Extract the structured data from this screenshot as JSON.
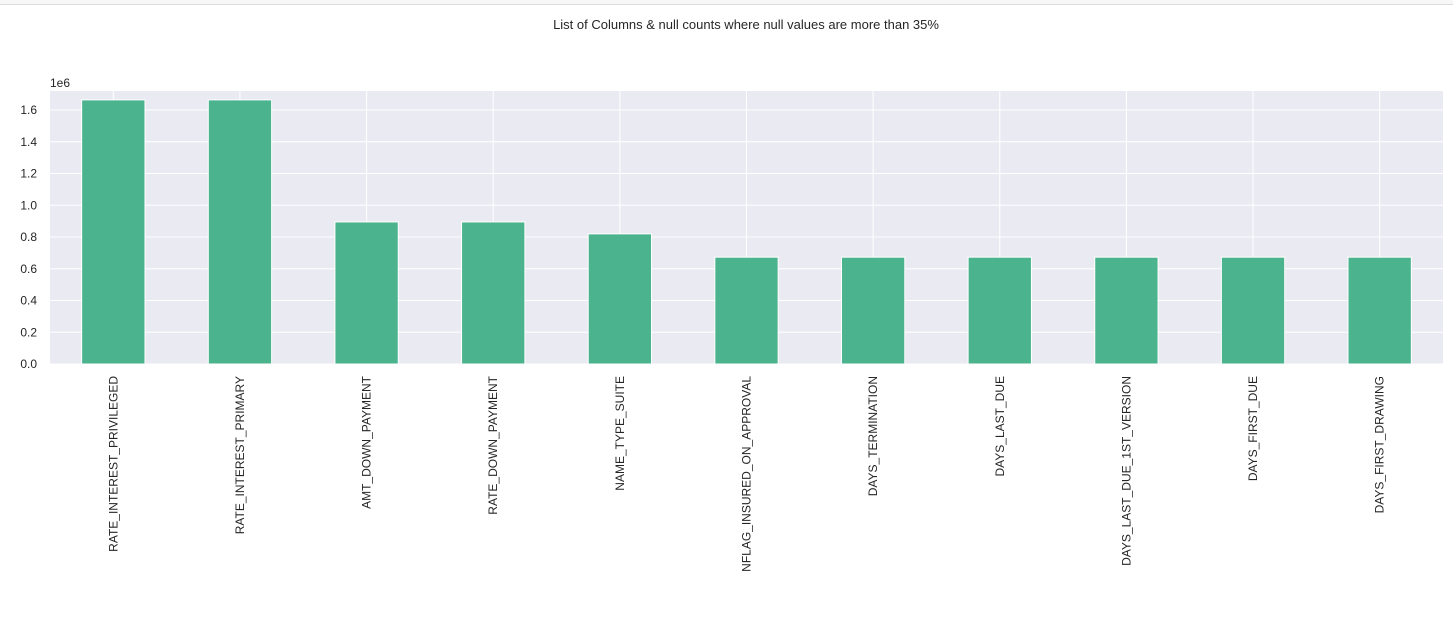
{
  "chart_data": {
    "type": "bar",
    "title": "List of Columns & null counts where null values are more than 35%",
    "offset_label": "1e6",
    "xlabel": "",
    "ylabel": "",
    "ylim": [
      0,
      1.72
    ],
    "yticks": [
      "0.0",
      "0.2",
      "0.4",
      "0.6",
      "0.8",
      "1.0",
      "1.2",
      "1.4",
      "1.6"
    ],
    "grid": true,
    "legend": false,
    "bar_color": "#4bb38e",
    "plot_background": "#eaeaf2",
    "categories": [
      "RATE_INTEREST_PRIVILEGED",
      "RATE_INTEREST_PRIMARY",
      "AMT_DOWN_PAYMENT",
      "RATE_DOWN_PAYMENT",
      "NAME_TYPE_SUITE",
      "NFLAG_INSURED_ON_APPROVAL",
      "DAYS_TERMINATION",
      "DAYS_LAST_DUE",
      "DAYS_LAST_DUE_1ST_VERSION",
      "DAYS_FIRST_DUE",
      "DAYS_FIRST_DRAWING"
    ],
    "values": [
      1.664,
      1.664,
      0.895,
      0.895,
      0.82,
      0.673,
      0.673,
      0.673,
      0.673,
      0.673,
      0.673
    ]
  }
}
